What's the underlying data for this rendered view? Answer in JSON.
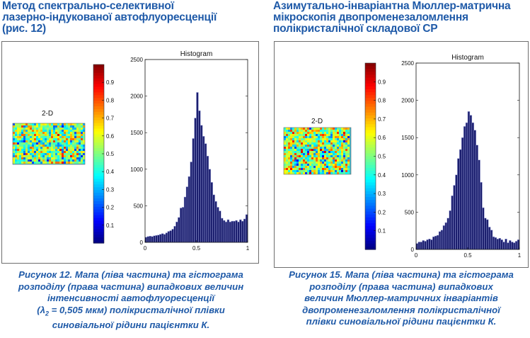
{
  "left": {
    "heading_lines": [
      "Метод спектрально-селективної",
      "лазерно-індукованої автофлуоресценції",
      "(рис. 12)"
    ],
    "map_label": "2-D",
    "colorbar_ticks": [
      "0.9",
      "0.8",
      "0.7",
      "0.6",
      "0.5",
      "0.4",
      "0.3",
      "0.2",
      "0.1"
    ],
    "caption": {
      "line1": "Рисунок 12. Мапа (ліва частина) та гістограма",
      "line2": "розподілу (права частина) випадкових величин",
      "line3": "інтенсивності автофлуоресценції",
      "line4_pre": "(λ",
      "line4_sub": "2",
      "line4_post": " = 0,505 мкм) полікристалічної плівки",
      "line5": "синовіальної рідини пацієнтки К."
    }
  },
  "right": {
    "heading_lines": [
      "Азимутально-інваріантна Мюллер-матрична",
      "мікроскопія двопроменезаломлення",
      "полікристалічної складової СР"
    ],
    "map_label": "2-D",
    "colorbar_ticks": [
      "0.9",
      "0.8",
      "0.7",
      "0.6",
      "0.5",
      "0.4",
      "0.3",
      "0.2",
      "0.1"
    ],
    "caption": {
      "line1": "Рисунок 15. Мапа (ліва частина) та гістограма",
      "line2": "розподілу (права частина) випадкових",
      "line3": "величин Мюллер-матричних інваріантів",
      "line4": "двопроменезаломлення полікристалічної",
      "line5": "плівки синовіальної рідини пацієнтки К."
    }
  },
  "chart_data": [
    {
      "type": "bar",
      "title": "Histogram",
      "xlabel": "",
      "ylabel": "",
      "xlim": [
        0,
        1
      ],
      "ylim": [
        0,
        2500
      ],
      "xticks": [
        "0",
        "0.5",
        "1"
      ],
      "yticks": [
        "0",
        "500",
        "1000",
        "1500",
        "2000",
        "2500"
      ],
      "x": [
        0.01,
        0.03,
        0.05,
        0.07,
        0.09,
        0.11,
        0.13,
        0.15,
        0.17,
        0.19,
        0.21,
        0.23,
        0.25,
        0.27,
        0.29,
        0.31,
        0.33,
        0.35,
        0.37,
        0.39,
        0.41,
        0.43,
        0.45,
        0.47,
        0.49,
        0.51,
        0.53,
        0.55,
        0.57,
        0.59,
        0.61,
        0.63,
        0.65,
        0.67,
        0.69,
        0.71,
        0.73,
        0.75,
        0.77,
        0.79,
        0.81,
        0.83,
        0.85,
        0.87,
        0.89,
        0.91,
        0.93,
        0.95,
        0.97,
        0.99
      ],
      "values": [
        70,
        80,
        85,
        80,
        90,
        95,
        100,
        110,
        120,
        110,
        130,
        150,
        160,
        180,
        220,
        280,
        340,
        470,
        480,
        620,
        760,
        900,
        1100,
        1420,
        1700,
        2050,
        1800,
        1600,
        1450,
        1350,
        1180,
        1000,
        820,
        650,
        560,
        480,
        430,
        330,
        300,
        280,
        310,
        280,
        290,
        290,
        300,
        280,
        310,
        290,
        320,
        380
      ]
    },
    {
      "type": "bar",
      "title": "Histogram",
      "xlabel": "",
      "ylabel": "",
      "xlim": [
        0,
        1
      ],
      "ylim": [
        0,
        2500
      ],
      "xticks": [
        "0",
        "0.5",
        "1"
      ],
      "yticks": [
        "0",
        "500",
        "1000",
        "1500",
        "2000",
        "2500"
      ],
      "x": [
        0.01,
        0.03,
        0.05,
        0.07,
        0.09,
        0.11,
        0.13,
        0.15,
        0.17,
        0.19,
        0.21,
        0.23,
        0.25,
        0.27,
        0.29,
        0.31,
        0.33,
        0.35,
        0.37,
        0.39,
        0.41,
        0.43,
        0.45,
        0.47,
        0.49,
        0.51,
        0.53,
        0.55,
        0.57,
        0.59,
        0.61,
        0.63,
        0.65,
        0.67,
        0.69,
        0.71,
        0.73,
        0.75,
        0.77,
        0.79,
        0.81,
        0.83,
        0.85,
        0.87,
        0.89,
        0.91,
        0.93,
        0.95,
        0.97,
        0.99
      ],
      "values": [
        80,
        100,
        100,
        120,
        110,
        130,
        140,
        130,
        170,
        180,
        190,
        240,
        260,
        320,
        360,
        420,
        520,
        720,
        860,
        1000,
        1220,
        1340,
        1500,
        1650,
        1700,
        1850,
        1800,
        1700,
        1600,
        1400,
        1200,
        900,
        560,
        420,
        400,
        300,
        260,
        170,
        160,
        140,
        150,
        130,
        100,
        140,
        90,
        120,
        100,
        90,
        110,
        130
      ]
    }
  ],
  "colors": {
    "text_accent": "#1f5aa8",
    "bar_fill": "#1b1e6e",
    "bar_stroke": "#9aa0d8",
    "frame": "#6e6e6e"
  }
}
